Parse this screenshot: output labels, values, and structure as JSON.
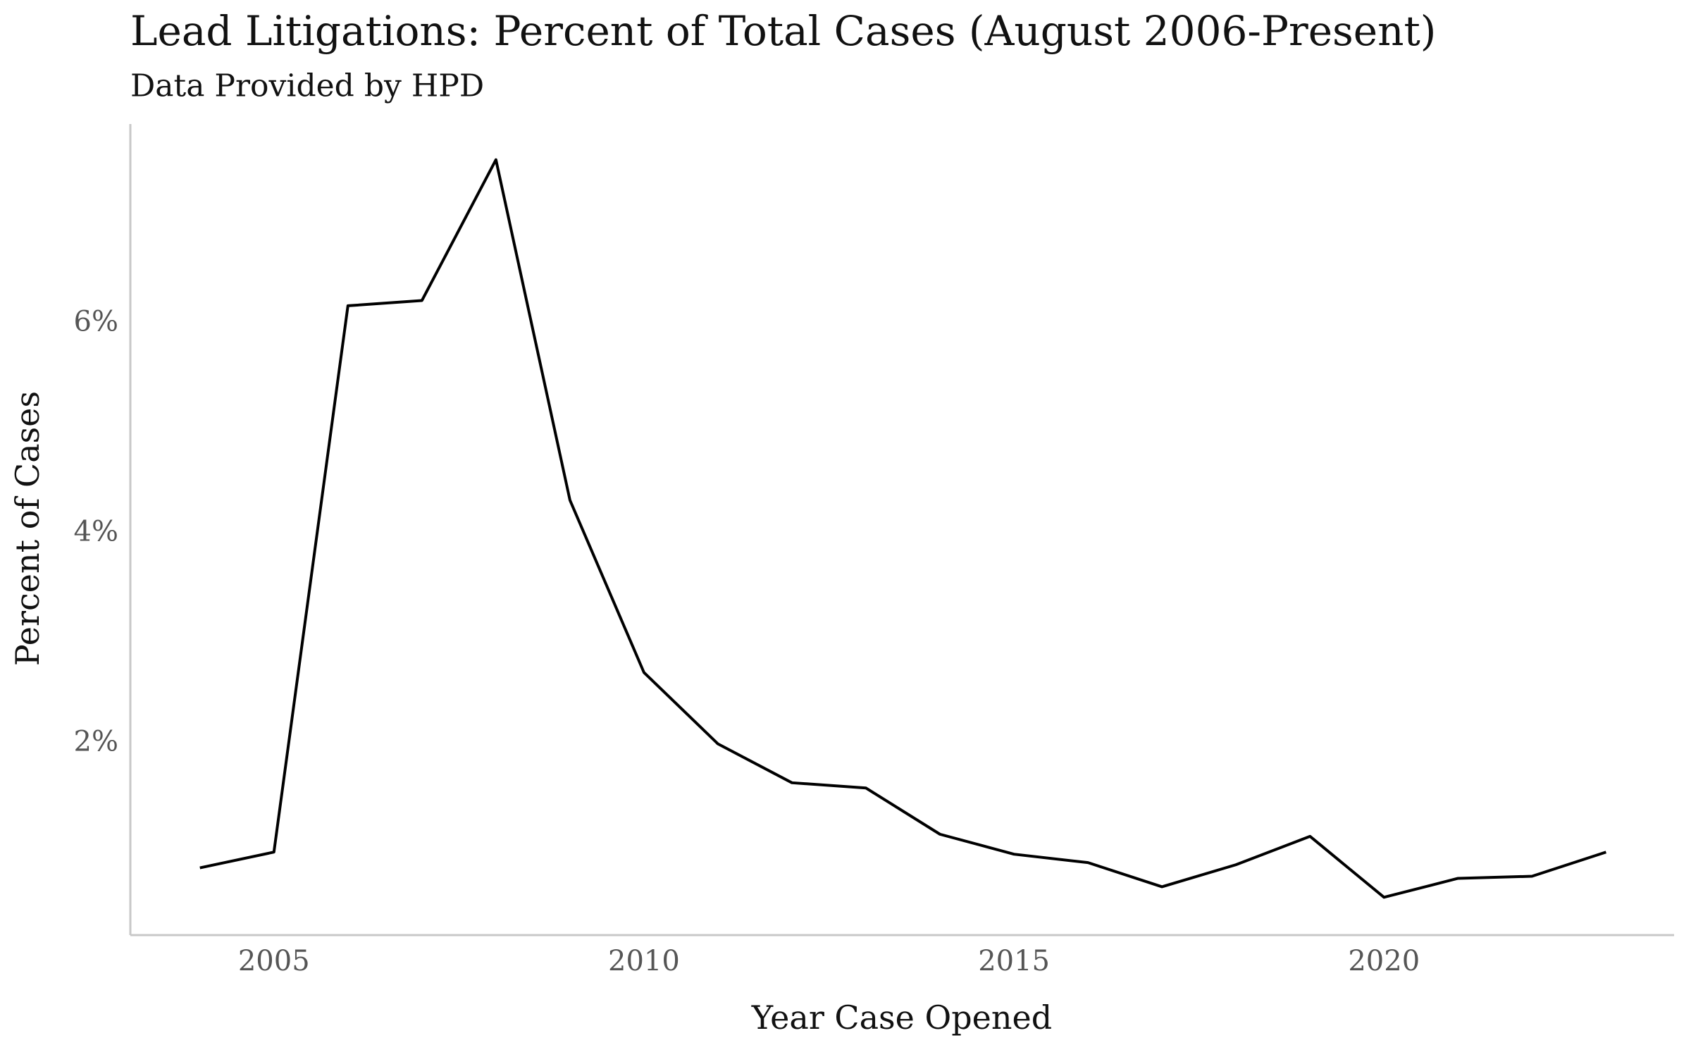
{
  "chart_data": {
    "type": "line",
    "title": "Lead Litigations: Percent of Total Cases (August 2006-Present)",
    "subtitle": "Data Provided by HPD",
    "x_label": "Year Case Opened",
    "y_label": "Percent of Cases",
    "x": [
      2004,
      2005,
      2006,
      2007,
      2008,
      2009,
      2010,
      2011,
      2012,
      2013,
      2014,
      2015,
      2016,
      2017,
      2018,
      2019,
      2020,
      2021,
      2022,
      2023
    ],
    "series": [
      {
        "color": "#000000",
        "values": [
          0.82,
          0.97,
          6.17,
          6.22,
          7.56,
          4.32,
          2.68,
          2.0,
          1.63,
          1.58,
          1.14,
          0.95,
          0.87,
          0.64,
          0.85,
          1.12,
          0.54,
          0.72,
          0.74,
          0.97
        ]
      }
    ],
    "xlim": [
      2003.06,
      2023.92
    ],
    "ylim": [
      0.18,
      7.9
    ],
    "xticks": [
      2005,
      2010,
      2015,
      2020
    ],
    "yticks": [
      {
        "value": 2,
        "label": "2%"
      },
      {
        "value": 4,
        "label": "4%"
      },
      {
        "value": 6,
        "label": "6%"
      }
    ],
    "grid": false
  }
}
